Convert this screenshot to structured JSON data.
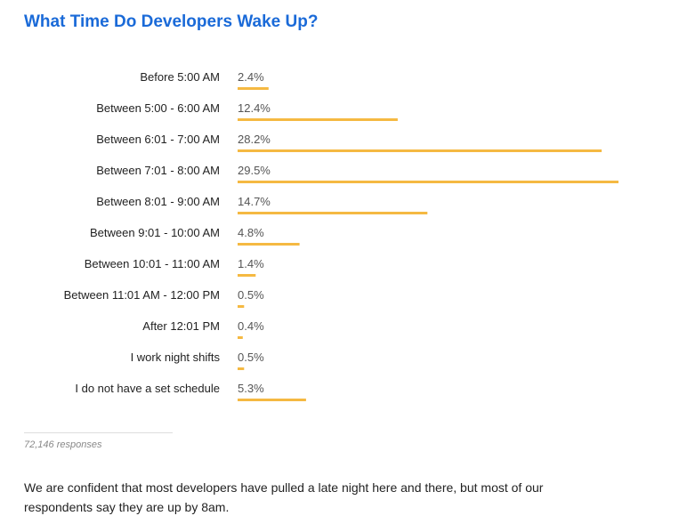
{
  "title": "What Time Do Developers Wake Up?",
  "footer": {
    "responses": "72,146 responses",
    "note": "We are confident that most developers have pulled a late night here and there, but most of our respondents say they are up by 8am."
  },
  "chart_data": {
    "type": "bar",
    "orientation": "horizontal",
    "title": "What Time Do Developers Wake Up?",
    "bar_color": "#f5b942",
    "categories": [
      "Before 5:00 AM",
      "Between 5:00 - 6:00 AM",
      "Between 6:01 - 7:00 AM",
      "Between 7:01 - 8:00 AM",
      "Between 8:01 - 9:00 AM",
      "Between 9:01 - 10:00 AM",
      "Between 10:01 - 11:00 AM",
      "Between 11:01 AM - 12:00 PM",
      "After 12:01 PM",
      "I work night shifts",
      "I do not have a set schedule"
    ],
    "values": [
      2.4,
      12.4,
      28.2,
      29.5,
      14.7,
      4.8,
      1.4,
      0.5,
      0.4,
      0.5,
      5.3
    ],
    "value_labels": [
      "2.4%",
      "12.4%",
      "28.2%",
      "29.5%",
      "14.7%",
      "4.8%",
      "1.4%",
      "0.5%",
      "0.4%",
      "0.5%",
      "5.3%"
    ],
    "unit": "%",
    "grid": false,
    "legend": false
  }
}
